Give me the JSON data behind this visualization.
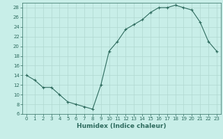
{
  "x": [
    0,
    1,
    2,
    3,
    4,
    5,
    6,
    7,
    8,
    9,
    10,
    11,
    12,
    13,
    14,
    15,
    16,
    17,
    18,
    19,
    20,
    21,
    22,
    23
  ],
  "y": [
    14,
    13,
    11.5,
    11.5,
    10,
    8.5,
    8,
    7.5,
    7,
    12,
    19,
    21,
    23.5,
    24.5,
    25.5,
    27,
    28,
    28,
    28.5,
    28,
    27.5,
    25,
    21,
    19
  ],
  "line_color": "#2e6b5e",
  "marker": "+",
  "bg_color": "#c8eee8",
  "grid_color": "#b0d8d0",
  "title": "",
  "xlabel": "Humidex (Indice chaleur)",
  "ylabel": "",
  "xlim": [
    -0.5,
    23.5
  ],
  "ylim": [
    6,
    29
  ],
  "yticks": [
    6,
    8,
    10,
    12,
    14,
    16,
    18,
    20,
    22,
    24,
    26,
    28
  ],
  "xticks": [
    0,
    1,
    2,
    3,
    4,
    5,
    6,
    7,
    8,
    9,
    10,
    11,
    12,
    13,
    14,
    15,
    16,
    17,
    18,
    19,
    20,
    21,
    22,
    23
  ],
  "tick_label_fontsize": 5.0,
  "xlabel_fontsize": 6.5,
  "line_width": 0.8,
  "marker_size": 3,
  "marker_ew": 0.8
}
